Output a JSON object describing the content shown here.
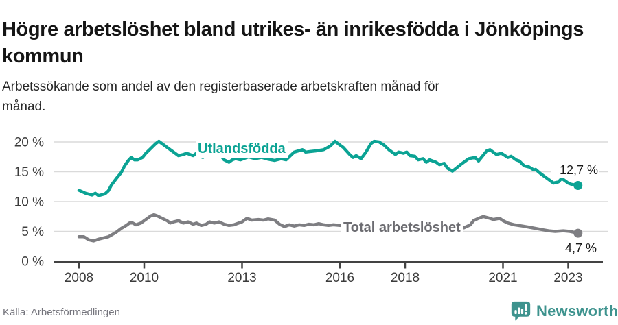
{
  "header": {
    "title": "Högre arbetslöshet bland utrikes- än inrikesfödda i Jönköpings kommun",
    "subtitle": "Arbetssökande som andel av den registerbaserade arbetskraften månad för månad."
  },
  "footer": {
    "source": "Källa: Arbetsförmedlingen",
    "logo_text": "Newsworthy"
  },
  "colors": {
    "accent_teal": "#0BA394",
    "series_gray": "#7E7E82",
    "gray_label": "#6C6C71",
    "gridline": "#DADADA",
    "axis": "#434343",
    "tick_text": "#3B3B3B",
    "logo_teal": "#3E938E",
    "value_text": "#1a1a1a"
  },
  "chart_data": {
    "type": "line",
    "title": "Högre arbetslöshet bland utrikes- än inrikesfödda i Jönköpings kommun",
    "subtitle": "Arbetssökande som andel av den registerbaserade arbetskraften månad för månad.",
    "xlabel": "",
    "ylabel": "",
    "x_unit": "year (decimal fraction = month)",
    "x_range": [
      2008.0,
      2023.4
    ],
    "ylim": [
      0,
      21.5
    ],
    "yticks": [
      0,
      5,
      10,
      15,
      20
    ],
    "ytick_suffix": " %",
    "xticks": [
      2008,
      2010,
      2013,
      2016,
      2018,
      2021,
      2023
    ],
    "grid": "horizontal",
    "legend_position": "inline-labels-on-lines",
    "series": [
      {
        "id": "utlandsfodda",
        "name": "Utlandsfödda",
        "color": "#0BA394",
        "end_label": "12,7 %",
        "end_value": 12.7,
        "points": [
          [
            2008.0,
            11.9
          ],
          [
            2008.2,
            11.4
          ],
          [
            2008.4,
            11.1
          ],
          [
            2008.5,
            11.4
          ],
          [
            2008.6,
            11.0
          ],
          [
            2008.8,
            11.3
          ],
          [
            2008.9,
            11.8
          ],
          [
            2009.0,
            12.8
          ],
          [
            2009.15,
            13.9
          ],
          [
            2009.3,
            14.9
          ],
          [
            2009.4,
            16.0
          ],
          [
            2009.5,
            16.8
          ],
          [
            2009.6,
            17.4
          ],
          [
            2009.7,
            17.0
          ],
          [
            2009.8,
            17.0
          ],
          [
            2009.95,
            17.4
          ],
          [
            2010.05,
            18.1
          ],
          [
            2010.2,
            18.9
          ],
          [
            2010.35,
            19.7
          ],
          [
            2010.45,
            20.1
          ],
          [
            2010.55,
            19.7
          ],
          [
            2010.65,
            19.3
          ],
          [
            2010.8,
            18.7
          ],
          [
            2010.9,
            18.3
          ],
          [
            2011.05,
            17.7
          ],
          [
            2011.2,
            17.9
          ],
          [
            2011.3,
            18.1
          ],
          [
            2011.5,
            17.7
          ],
          [
            2011.6,
            18.1
          ],
          [
            2011.7,
            17.6
          ],
          [
            2011.8,
            17.4
          ],
          [
            2011.9,
            18.1
          ],
          [
            2012.0,
            19.3
          ],
          [
            2012.1,
            19.1
          ],
          [
            2012.2,
            18.5
          ],
          [
            2012.3,
            18.1
          ],
          [
            2012.45,
            17.0
          ],
          [
            2012.6,
            16.6
          ],
          [
            2012.7,
            17.0
          ],
          [
            2012.8,
            17.2
          ],
          [
            2012.95,
            17.0
          ],
          [
            2013.05,
            17.2
          ],
          [
            2013.2,
            17.5
          ],
          [
            2013.4,
            17.2
          ],
          [
            2013.6,
            17.4
          ],
          [
            2013.8,
            17.1
          ],
          [
            2014.0,
            16.9
          ],
          [
            2014.2,
            17.2
          ],
          [
            2014.35,
            17.0
          ],
          [
            2014.6,
            18.3
          ],
          [
            2014.85,
            18.7
          ],
          [
            2014.95,
            18.3
          ],
          [
            2015.1,
            18.4
          ],
          [
            2015.25,
            18.5
          ],
          [
            2015.5,
            18.7
          ],
          [
            2015.7,
            19.3
          ],
          [
            2015.85,
            20.1
          ],
          [
            2016.0,
            19.5
          ],
          [
            2016.1,
            19.1
          ],
          [
            2016.3,
            17.9
          ],
          [
            2016.4,
            17.4
          ],
          [
            2016.5,
            17.7
          ],
          [
            2016.65,
            17.2
          ],
          [
            2016.8,
            18.3
          ],
          [
            2016.95,
            19.7
          ],
          [
            2017.05,
            20.1
          ],
          [
            2017.2,
            20.0
          ],
          [
            2017.35,
            19.5
          ],
          [
            2017.5,
            18.7
          ],
          [
            2017.7,
            17.9
          ],
          [
            2017.8,
            18.3
          ],
          [
            2017.95,
            18.1
          ],
          [
            2018.05,
            18.3
          ],
          [
            2018.15,
            17.7
          ],
          [
            2018.3,
            17.6
          ],
          [
            2018.4,
            17.0
          ],
          [
            2018.55,
            17.2
          ],
          [
            2018.65,
            16.6
          ],
          [
            2018.75,
            17.0
          ],
          [
            2018.95,
            16.6
          ],
          [
            2019.05,
            16.2
          ],
          [
            2019.2,
            16.4
          ],
          [
            2019.3,
            15.6
          ],
          [
            2019.45,
            15.1
          ],
          [
            2019.7,
            16.2
          ],
          [
            2019.95,
            17.2
          ],
          [
            2020.15,
            17.4
          ],
          [
            2020.25,
            16.8
          ],
          [
            2020.5,
            18.5
          ],
          [
            2020.6,
            18.7
          ],
          [
            2020.8,
            17.9
          ],
          [
            2020.95,
            18.1
          ],
          [
            2021.15,
            17.4
          ],
          [
            2021.25,
            17.6
          ],
          [
            2021.4,
            17.0
          ],
          [
            2021.5,
            16.8
          ],
          [
            2021.65,
            16.0
          ],
          [
            2021.8,
            15.8
          ],
          [
            2021.95,
            15.3
          ],
          [
            2022.0,
            15.4
          ],
          [
            2022.15,
            14.7
          ],
          [
            2022.3,
            14.1
          ],
          [
            2022.4,
            13.7
          ],
          [
            2022.55,
            13.1
          ],
          [
            2022.7,
            13.3
          ],
          [
            2022.8,
            13.9
          ],
          [
            2022.9,
            13.5
          ],
          [
            2023.0,
            13.1
          ],
          [
            2023.1,
            12.9
          ],
          [
            2023.3,
            12.7
          ]
        ]
      },
      {
        "id": "total",
        "name": "Total arbetslöshet",
        "color": "#7E7E82",
        "label_color": "#6C6C71",
        "end_label": "4,7 %",
        "end_value": 4.7,
        "points": [
          [
            2008.0,
            4.1
          ],
          [
            2008.15,
            4.1
          ],
          [
            2008.3,
            3.6
          ],
          [
            2008.45,
            3.4
          ],
          [
            2008.6,
            3.7
          ],
          [
            2008.75,
            3.9
          ],
          [
            2008.9,
            4.1
          ],
          [
            2009.0,
            4.4
          ],
          [
            2009.15,
            4.9
          ],
          [
            2009.3,
            5.5
          ],
          [
            2009.45,
            6.0
          ],
          [
            2009.55,
            6.4
          ],
          [
            2009.65,
            6.4
          ],
          [
            2009.75,
            6.1
          ],
          [
            2009.9,
            6.4
          ],
          [
            2010.0,
            6.8
          ],
          [
            2010.1,
            7.2
          ],
          [
            2010.2,
            7.6
          ],
          [
            2010.3,
            7.8
          ],
          [
            2010.4,
            7.6
          ],
          [
            2010.55,
            7.2
          ],
          [
            2010.7,
            6.8
          ],
          [
            2010.8,
            6.4
          ],
          [
            2010.9,
            6.6
          ],
          [
            2011.05,
            6.8
          ],
          [
            2011.2,
            6.4
          ],
          [
            2011.35,
            6.6
          ],
          [
            2011.5,
            6.2
          ],
          [
            2011.6,
            6.4
          ],
          [
            2011.75,
            6.0
          ],
          [
            2011.9,
            6.2
          ],
          [
            2012.0,
            6.6
          ],
          [
            2012.15,
            6.4
          ],
          [
            2012.3,
            6.6
          ],
          [
            2012.45,
            6.2
          ],
          [
            2012.6,
            6.0
          ],
          [
            2012.75,
            6.1
          ],
          [
            2012.9,
            6.4
          ],
          [
            2013.0,
            6.6
          ],
          [
            2013.15,
            7.2
          ],
          [
            2013.3,
            6.9
          ],
          [
            2013.5,
            7.0
          ],
          [
            2013.65,
            6.9
          ],
          [
            2013.8,
            7.1
          ],
          [
            2014.0,
            6.9
          ],
          [
            2014.15,
            6.2
          ],
          [
            2014.3,
            5.8
          ],
          [
            2014.45,
            6.1
          ],
          [
            2014.6,
            5.9
          ],
          [
            2014.75,
            6.1
          ],
          [
            2014.9,
            6.0
          ],
          [
            2015.05,
            6.2
          ],
          [
            2015.2,
            6.1
          ],
          [
            2015.35,
            6.3
          ],
          [
            2015.5,
            6.1
          ],
          [
            2015.65,
            6.0
          ],
          [
            2015.8,
            6.1
          ],
          [
            2016.0,
            6.0
          ],
          [
            2016.3,
            5.9
          ],
          [
            2016.6,
            5.8
          ],
          [
            2017.0,
            5.7
          ],
          [
            2017.4,
            5.5
          ],
          [
            2017.8,
            5.4
          ],
          [
            2018.2,
            5.3
          ],
          [
            2018.6,
            5.2
          ],
          [
            2019.0,
            5.2
          ],
          [
            2019.4,
            5.3
          ],
          [
            2019.8,
            5.6
          ],
          [
            2020.0,
            6.1
          ],
          [
            2020.1,
            6.8
          ],
          [
            2020.25,
            7.2
          ],
          [
            2020.4,
            7.5
          ],
          [
            2020.6,
            7.2
          ],
          [
            2020.7,
            7.0
          ],
          [
            2020.9,
            7.2
          ],
          [
            2021.0,
            6.8
          ],
          [
            2021.15,
            6.4
          ],
          [
            2021.35,
            6.1
          ],
          [
            2021.6,
            5.9
          ],
          [
            2021.8,
            5.7
          ],
          [
            2022.0,
            5.5
          ],
          [
            2022.2,
            5.3
          ],
          [
            2022.4,
            5.1
          ],
          [
            2022.6,
            5.0
          ],
          [
            2022.85,
            5.1
          ],
          [
            2023.05,
            5.0
          ],
          [
            2023.3,
            4.7
          ]
        ]
      }
    ]
  }
}
